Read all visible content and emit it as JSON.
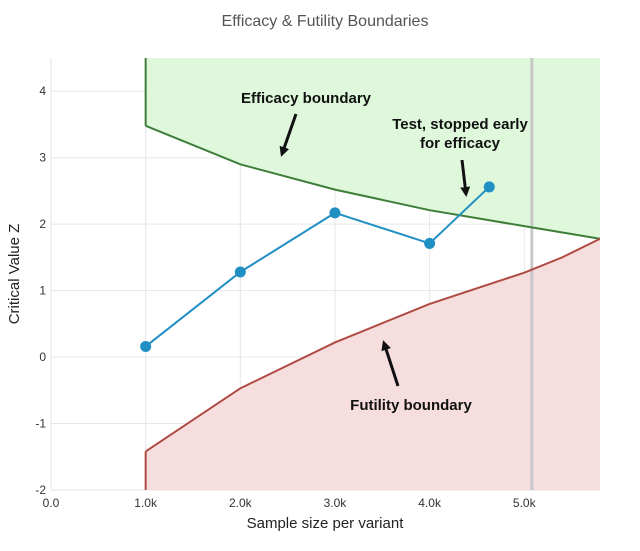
{
  "chart_data": {
    "type": "line",
    "title": "Efficacy & Futility Boundaries",
    "xlabel": "Sample size per variant",
    "ylabel": "Critical Value Z",
    "xlim": [
      0,
      5800
    ],
    "ylim": [
      -2,
      4.5
    ],
    "x_ticks": [
      0,
      1000,
      2000,
      3000,
      4000,
      5000
    ],
    "x_tick_labels": [
      "0.0",
      "1.0k",
      "2.0k",
      "3.0k",
      "4.0k",
      "5.0k"
    ],
    "y_ticks": [
      -2,
      -1,
      0,
      1,
      2,
      3,
      4
    ],
    "y_tick_labels": [
      "-2",
      "-1",
      "0",
      "1",
      "2",
      "3",
      "4"
    ],
    "grid": true,
    "legend": "none",
    "reference_line_x": 5080,
    "efficacy_boundary": {
      "x": [
        1000,
        2000,
        3000,
        4000,
        5000,
        5800
      ],
      "y": [
        3.48,
        2.9,
        2.52,
        2.21,
        1.97,
        1.78
      ],
      "color": "#3e7d3a",
      "fill": "#dff8dc"
    },
    "futility_boundary": {
      "x": [
        1000,
        2000,
        3000,
        4000,
        5000,
        5400,
        5800
      ],
      "y": [
        -1.42,
        -0.47,
        0.22,
        0.8,
        1.27,
        1.5,
        1.78
      ],
      "color": "#b04a44",
      "fill": "#f7dede"
    },
    "series": [
      {
        "values_x": [
          1000,
          2000,
          3000,
          4000,
          4630
        ],
        "values_y": [
          0.16,
          1.28,
          2.17,
          1.71,
          2.56
        ],
        "color": "#1f8fc4"
      }
    ],
    "annotations": [
      {
        "lines": [
          "Efficacy boundary"
        ]
      },
      {
        "lines": [
          "Test, stopped early",
          "for efficacy"
        ]
      },
      {
        "lines": [
          "Futility boundary"
        ]
      }
    ]
  }
}
